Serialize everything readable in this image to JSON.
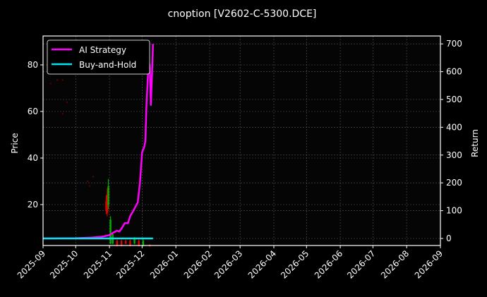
{
  "chart_data": {
    "type": "line",
    "title": "cnoption [V2602-C-5300.DCE]",
    "xlabel": "",
    "ylabel": "Price",
    "y2label": "Return",
    "x_ticks": [
      "2025-09",
      "2025-10",
      "2025-11",
      "2025-12",
      "2026-01",
      "2026-02",
      "2026-03",
      "2026-04",
      "2026-05",
      "2026-06",
      "2026-07",
      "2026-08",
      "2026-09"
    ],
    "y_ticks": [
      20,
      40,
      60,
      80
    ],
    "y2_ticks": [
      0,
      100,
      200,
      300,
      400,
      500,
      600,
      700
    ],
    "ylim": [
      2,
      92
    ],
    "y2lim": [
      -30,
      720
    ],
    "grid": true,
    "legend_position": "upper left",
    "legend": [
      "AI Strategy",
      "Buy-and-Hold"
    ],
    "colors": {
      "ai_strategy": "#ff00ff",
      "buy_and_hold": "#00e5ee",
      "candle_up": "#00b000",
      "candle_down": "#e00000",
      "background": "#000000",
      "grid": "#555555"
    },
    "series": [
      {
        "name": "AI Strategy",
        "axis": "right",
        "x": [
          "2025-09-01",
          "2025-10-01",
          "2025-10-15",
          "2025-10-25",
          "2025-11-01",
          "2025-11-05",
          "2025-11-08",
          "2025-11-10",
          "2025-11-12",
          "2025-11-15",
          "2025-11-18",
          "2025-11-20",
          "2025-11-23",
          "2025-11-25",
          "2025-11-27",
          "2025-11-29",
          "2025-12-01",
          "2025-12-03",
          "2025-12-04",
          "2025-12-05",
          "2025-12-06",
          "2025-12-07",
          "2025-12-08",
          "2025-12-09",
          "2025-12-10",
          "2025-12-11"
        ],
        "values": [
          0,
          1,
          3,
          6,
          12,
          22,
          28,
          25,
          35,
          55,
          55,
          80,
          100,
          115,
          130,
          200,
          310,
          330,
          350,
          480,
          560,
          640,
          620,
          480,
          580,
          700
        ]
      },
      {
        "name": "Buy-and-Hold",
        "axis": "right",
        "x": [
          "2025-09-01",
          "2025-12-11"
        ],
        "values": [
          0,
          0
        ]
      }
    ],
    "candles_note": "Sparse price candlesticks (red/green) around Oct–Dec 2025, mostly 2–30 range",
    "candles": [
      {
        "x": "2025-10-29",
        "low": 16,
        "high": 24,
        "dir": "down"
      },
      {
        "x": "2025-10-30",
        "low": 15,
        "high": 27,
        "dir": "down"
      },
      {
        "x": "2025-10-31",
        "low": 18,
        "high": 31,
        "dir": "up"
      },
      {
        "x": "2025-11-02",
        "low": 3,
        "high": 15,
        "dir": "up"
      },
      {
        "x": "2025-11-04",
        "low": 3,
        "high": 8,
        "dir": "up"
      },
      {
        "x": "2025-11-08",
        "low": 2,
        "high": 5,
        "dir": "down"
      },
      {
        "x": "2025-11-12",
        "low": 2,
        "high": 5,
        "dir": "down"
      },
      {
        "x": "2025-11-16",
        "low": 3,
        "high": 5,
        "dir": "down"
      },
      {
        "x": "2025-11-20",
        "low": 2,
        "high": 5,
        "dir": "down"
      },
      {
        "x": "2025-11-24",
        "low": 3,
        "high": 6,
        "dir": "up"
      },
      {
        "x": "2025-11-28",
        "low": 2,
        "high": 5,
        "dir": "down"
      },
      {
        "x": "2025-12-02",
        "low": 2,
        "high": 5,
        "dir": "up"
      },
      {
        "x": "2025-12-08",
        "low": 2,
        "high": 3,
        "dir": "down"
      }
    ]
  }
}
